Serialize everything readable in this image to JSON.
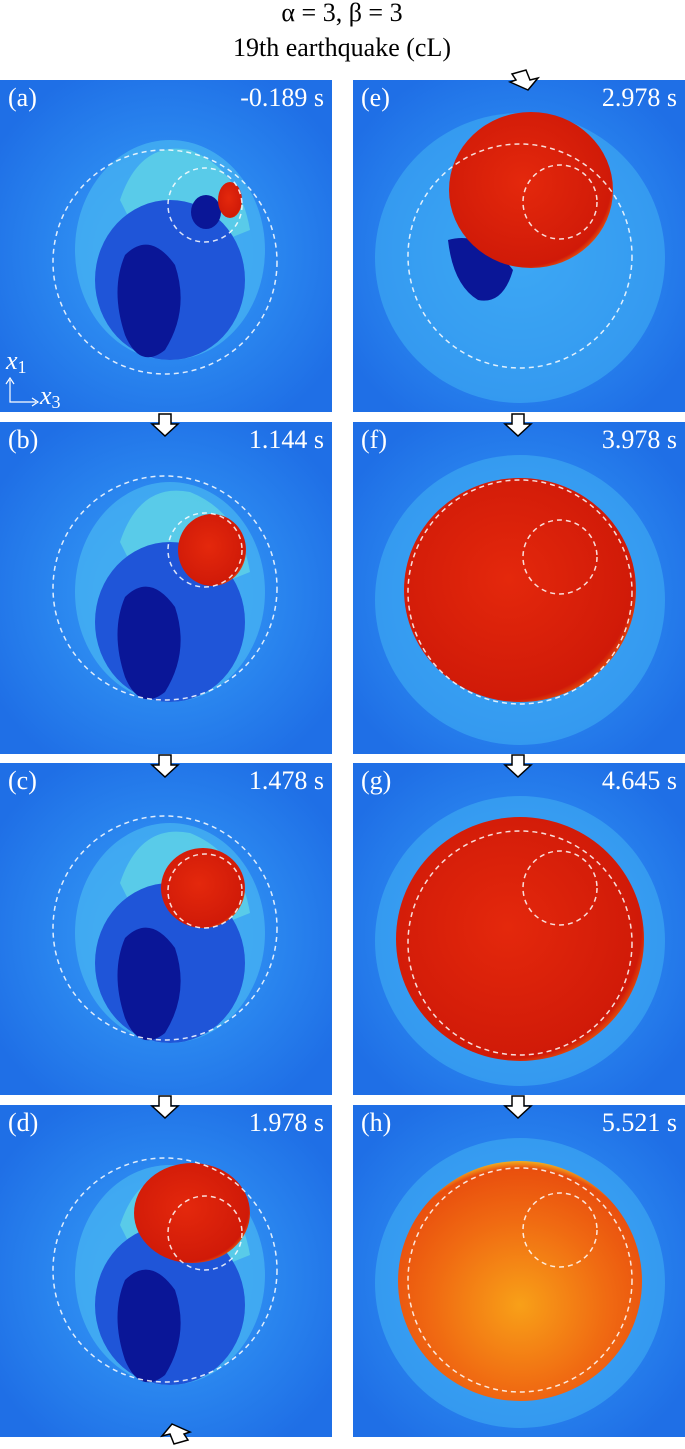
{
  "title": [
    "α = 3, β = 3",
    "19th earthquake (cL)"
  ],
  "panels": [
    {
      "label": "(a)",
      "time": "-0.189 s"
    },
    {
      "label": "(b)",
      "time": "1.144 s"
    },
    {
      "label": "(c)",
      "time": "1.478 s"
    },
    {
      "label": "(d)",
      "time": "1.978 s"
    },
    {
      "label": "(e)",
      "time": "2.978 s"
    },
    {
      "label": "(f)",
      "time": "3.978 s"
    },
    {
      "label": "(g)",
      "time": "4.645 s"
    },
    {
      "label": "(h)",
      "time": "5.521 s"
    }
  ],
  "axes": {
    "vertical": "x",
    "vertical_sub": "1",
    "horizontal": "x",
    "horizontal_sub": "3"
  }
}
